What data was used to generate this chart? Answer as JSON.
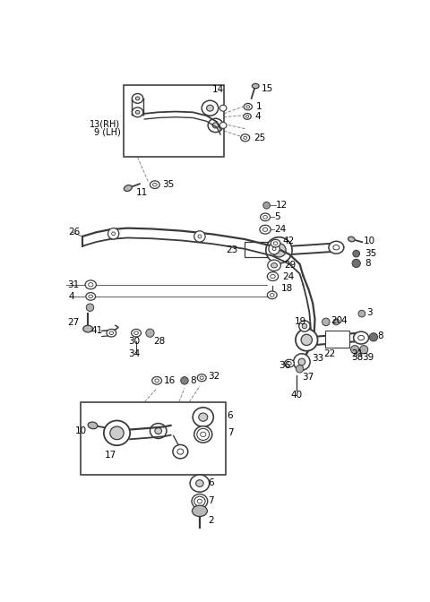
{
  "bg": "#ffffff",
  "lc": "#3a3a3a",
  "tc": "#000000",
  "figw": 4.8,
  "figh": 6.72,
  "dpi": 100
}
